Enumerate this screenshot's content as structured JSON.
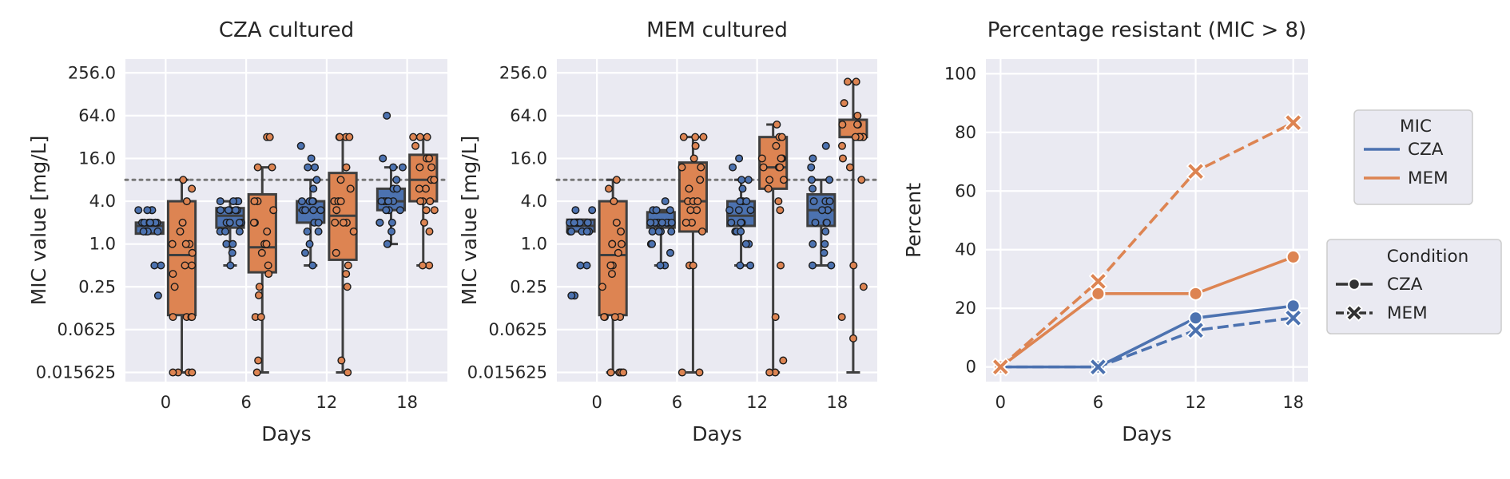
{
  "colors": {
    "CZA": "#4c72b0",
    "MEM": "#dd8452",
    "edge": "#3f3f3f",
    "threshold": "#777777"
  },
  "chart_data": [
    {
      "type": "box",
      "title": "CZA cultured",
      "xlabel": "Days",
      "ylabel": "MIC value [mg/L]",
      "yscale": "log2",
      "ylim": [
        0.0116,
        400
      ],
      "yticks": [
        "256.0",
        "64.0",
        "16.0",
        "4.0",
        "1.0",
        "0.25",
        "0.0625",
        "0.015625"
      ],
      "categories": [
        "0",
        "6",
        "12",
        "18"
      ],
      "threshold": 8,
      "series": [
        {
          "name": "CZA",
          "boxes": [
            {
              "q1": 1.4,
              "median": 1.8,
              "q3": 2.0,
              "whislo": 1.4,
              "whishi": 2.0,
              "points": [
                2,
                2,
                2,
                2,
                2,
                2,
                2,
                2,
                2,
                2,
                3,
                3,
                3,
                3,
                1.5,
                1.5,
                1.5,
                1.5,
                0.5,
                0.5,
                0.188
              ]
            },
            {
              "q1": 1.7,
              "median": 2.5,
              "q3": 3.2,
              "whislo": 0.5,
              "whishi": 4,
              "points": [
                4,
                4,
                4,
                4,
                3,
                3,
                3,
                3,
                3,
                2,
                2,
                2,
                2,
                2,
                1.5,
                1.5,
                1.5,
                1,
                1,
                0.75,
                0.5
              ]
            },
            {
              "q1": 2.0,
              "median": 3.0,
              "q3": 4.0,
              "whislo": 0.5,
              "whishi": 8,
              "points": [
                24,
                16,
                12,
                12,
                8,
                6,
                4,
                4,
                4,
                4,
                3,
                3,
                3,
                3,
                2,
                2,
                1.5,
                1.5,
                1,
                0.75,
                0.5
              ]
            },
            {
              "q1": 3.0,
              "median": 4.0,
              "q3": 6.0,
              "whislo": 1.0,
              "whishi": 12,
              "points": [
                64,
                16,
                12,
                12,
                8,
                6,
                6,
                4,
                4,
                4,
                4,
                4,
                3,
                3,
                3,
                2,
                2,
                2,
                1.5,
                1,
                1
              ]
            }
          ]
        },
        {
          "name": "MEM",
          "boxes": [
            {
              "q1": 0.1,
              "median": 0.7,
              "q3": 4.0,
              "whislo": 0.0156,
              "whishi": 8,
              "points": [
                8,
                6,
                4,
                2,
                1.5,
                1,
                1,
                1,
                0.75,
                0.5,
                0.5,
                0.38,
                0.25,
                0.094,
                0.094,
                0.094,
                0.094,
                0.0156,
                0.0156,
                0.0156,
                0.0156
              ]
            },
            {
              "q1": 0.4,
              "median": 0.9,
              "q3": 5.0,
              "whislo": 0.0156,
              "whishi": 12,
              "points": [
                32,
                32,
                12,
                12,
                4,
                4,
                3,
                2,
                2,
                1.5,
                1,
                1,
                0.75,
                0.5,
                0.38,
                0.25,
                0.19,
                0.094,
                0.094,
                0.023,
                0.0156
              ]
            },
            {
              "q1": 0.6,
              "median": 2.5,
              "q3": 10.0,
              "whislo": 0.0156,
              "whishi": 32,
              "points": [
                32,
                32,
                32,
                32,
                12,
                8,
                6,
                4,
                4,
                4,
                3,
                2,
                2,
                2,
                1.5,
                0.75,
                0.5,
                0.38,
                0.25,
                0.023,
                0.0156
              ]
            },
            {
              "q1": 4.0,
              "median": 8.0,
              "q3": 18.0,
              "whislo": 0.5,
              "whishi": 32,
              "points": [
                32,
                32,
                32,
                24,
                16,
                16,
                12,
                12,
                8,
                8,
                6,
                6,
                4,
                4,
                4,
                3,
                3,
                2,
                1.5,
                0.5,
                0.5
              ]
            }
          ]
        }
      ]
    },
    {
      "type": "box",
      "title": "MEM cultured",
      "xlabel": "Days",
      "ylabel": "MIC value [mg/L]",
      "yscale": "log2",
      "ylim": [
        0.0116,
        400
      ],
      "yticks": [
        "256.0",
        "64.0",
        "16.0",
        "4.0",
        "1.0",
        "0.25",
        "0.0625",
        "0.015625"
      ],
      "categories": [
        "0",
        "6",
        "12",
        "18"
      ],
      "threshold": 8,
      "series": [
        {
          "name": "CZA",
          "boxes": [
            {
              "q1": 1.5,
              "median": 1.8,
              "q3": 2.2,
              "whislo": 1.5,
              "whishi": 2.2,
              "points": [
                3,
                3,
                2,
                2,
                2,
                2,
                2,
                2,
                2,
                2,
                2,
                2,
                1.5,
                1.5,
                1.5,
                1.5,
                1.5,
                0.5,
                0.5,
                0.188,
                0.188
              ]
            },
            {
              "q1": 1.7,
              "median": 2.0,
              "q3": 2.8,
              "whislo": 0.5,
              "whishi": 3,
              "points": [
                4,
                3,
                3,
                3,
                2,
                2,
                2,
                2,
                2,
                2,
                2,
                2,
                1.5,
                1.5,
                1.5,
                1.5,
                1,
                1,
                0.75,
                0.5,
                0.5
              ]
            },
            {
              "q1": 1.8,
              "median": 2.5,
              "q3": 4.0,
              "whislo": 0.5,
              "whishi": 8,
              "points": [
                16,
                12,
                8,
                8,
                6,
                4,
                4,
                4,
                3,
                3,
                3,
                2,
                2,
                2,
                1.5,
                1.5,
                1.5,
                1,
                1,
                0.5,
                0.5
              ]
            },
            {
              "q1": 1.8,
              "median": 3.0,
              "q3": 5.0,
              "whislo": 0.5,
              "whishi": 8,
              "points": [
                24,
                16,
                12,
                8,
                8,
                6,
                4,
                4,
                4,
                3,
                3,
                3,
                2,
                2,
                2,
                1.5,
                1,
                1,
                0.75,
                0.5,
                0.5
              ]
            }
          ]
        },
        {
          "name": "MEM",
          "boxes": [
            {
              "q1": 0.1,
              "median": 0.7,
              "q3": 4.0,
              "whislo": 0.0156,
              "whishi": 8,
              "points": [
                8,
                6,
                4,
                2,
                1.5,
                1,
                1,
                1,
                0.75,
                0.5,
                0.5,
                0.38,
                0.25,
                0.094,
                0.094,
                0.094,
                0.094,
                0.0156,
                0.0156,
                0.0156,
                0.0156
              ]
            },
            {
              "q1": 1.5,
              "median": 4.0,
              "q3": 14.0,
              "whislo": 0.0156,
              "whishi": 32,
              "points": [
                32,
                32,
                32,
                24,
                16,
                12,
                12,
                8,
                6,
                4,
                4,
                4,
                3,
                3,
                2,
                2,
                1.5,
                0.5,
                0.5,
                0.0156,
                0.0156
              ]
            },
            {
              "q1": 6.0,
              "median": 12.0,
              "q3": 32.0,
              "whislo": 0.0156,
              "whishi": 48,
              "points": [
                48,
                32,
                32,
                24,
                16,
                16,
                16,
                12,
                12,
                12,
                8,
                8,
                6,
                6,
                4,
                3,
                0.5,
                0.094,
                0.023,
                0.0156,
                0.0156
              ]
            },
            {
              "q1": 32.0,
              "median": 32.0,
              "q3": 56.0,
              "whislo": 0.0156,
              "whishi": 192,
              "points": [
                192,
                192,
                96,
                64,
                48,
                48,
                48,
                32,
                32,
                32,
                32,
                32,
                32,
                24,
                16,
                12,
                8,
                0.5,
                0.25,
                0.094,
                0.047
              ]
            }
          ]
        }
      ]
    },
    {
      "type": "line",
      "title": "Percentage resistant (MIC > 8)",
      "xlabel": "Days",
      "ylabel": "Percent",
      "x": [
        0,
        6,
        12,
        18
      ],
      "xlim": [
        -0.9,
        18.9
      ],
      "ylim": [
        -5,
        105
      ],
      "yticks": [
        0,
        20,
        40,
        60,
        80,
        100
      ],
      "series": [
        {
          "mic": "CZA",
          "condition": "CZA",
          "values": [
            0,
            0,
            16.7,
            20.8
          ]
        },
        {
          "mic": "MEM",
          "condition": "CZA",
          "values": [
            0,
            25,
            25,
            37.5
          ]
        },
        {
          "mic": "CZA",
          "condition": "MEM",
          "values": [
            0,
            0,
            12.5,
            16.7
          ]
        },
        {
          "mic": "MEM",
          "condition": "MEM",
          "values": [
            0,
            29.2,
            66.7,
            83.3
          ]
        }
      ],
      "legend_mic": {
        "title": "MIC",
        "items": [
          "CZA",
          "MEM"
        ],
        "placement": "right"
      },
      "legend_condition": {
        "title": "Condition",
        "items": [
          "CZA",
          "MEM"
        ],
        "placement": "right"
      }
    }
  ]
}
